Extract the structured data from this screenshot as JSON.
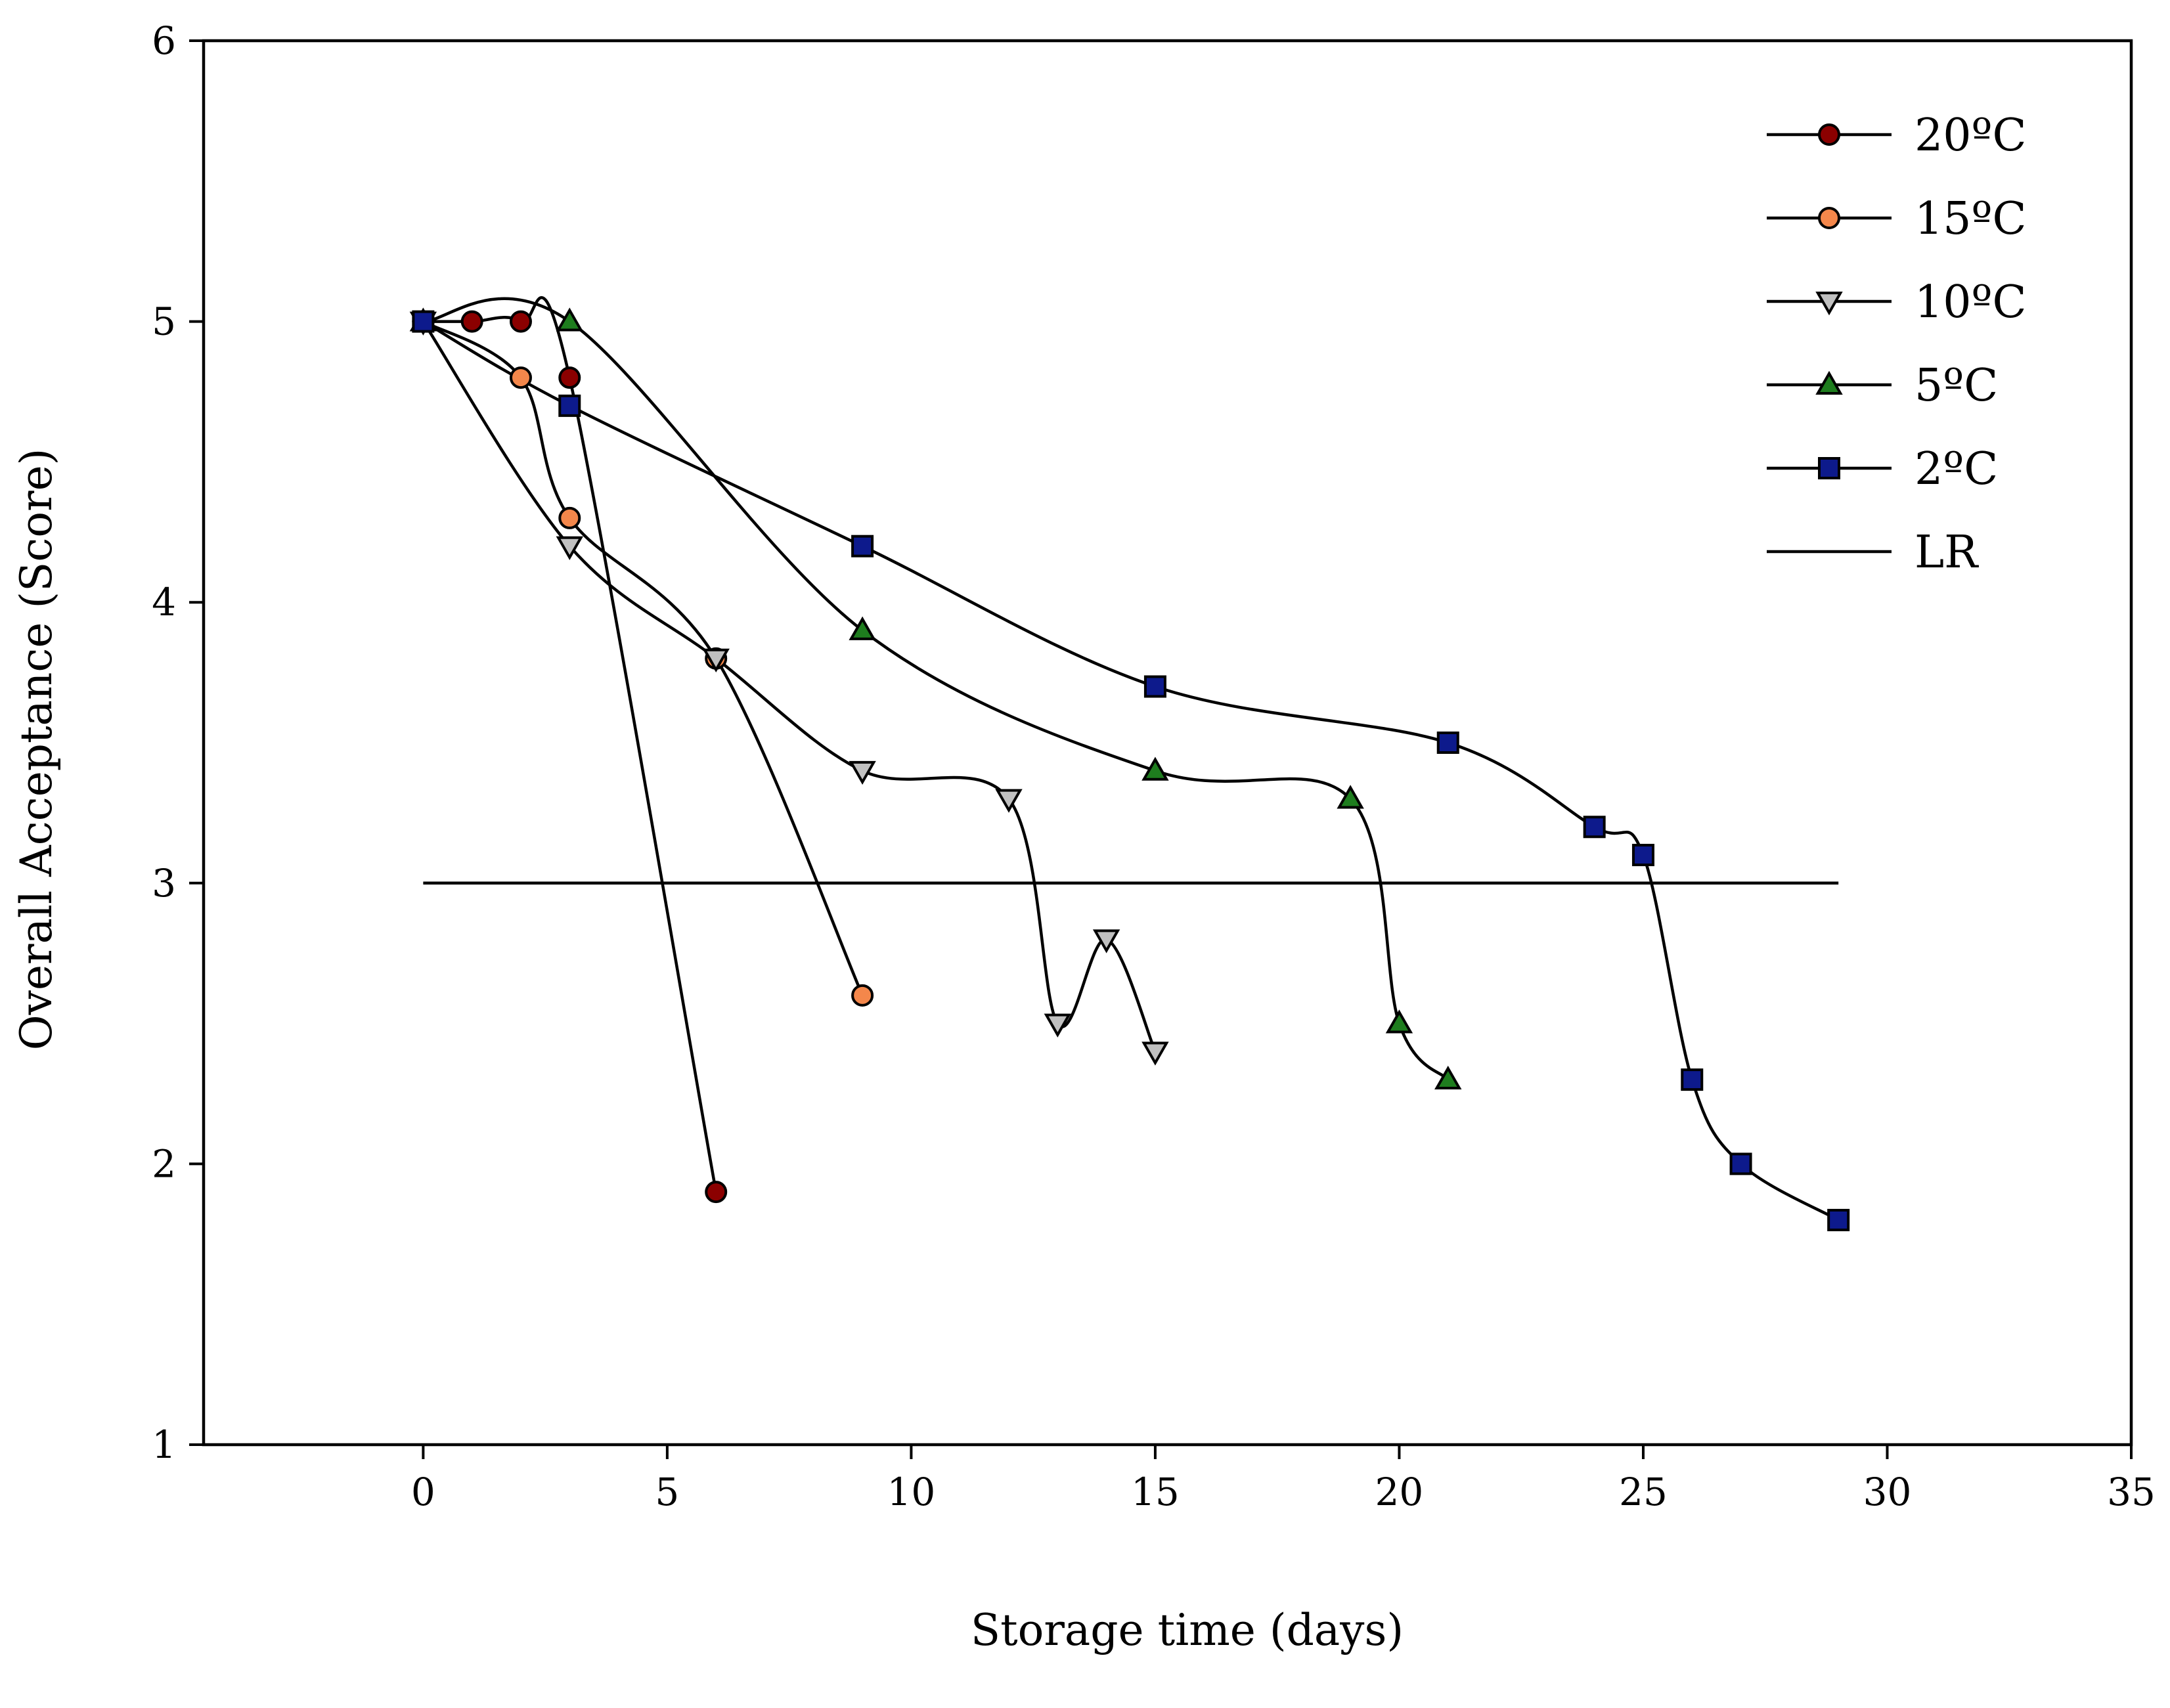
{
  "chart_data": {
    "type": "line",
    "title": "",
    "xlabel": "Storage time (days)",
    "ylabel": "Overall Acceptance (Score)",
    "xlim": [
      -4.5,
      35
    ],
    "ylim": [
      1,
      6
    ],
    "xticks": [
      0,
      5,
      10,
      15,
      20,
      25,
      30,
      35
    ],
    "yticks": [
      1,
      2,
      3,
      4,
      5,
      6
    ],
    "legend_position": "top-right",
    "series": [
      {
        "name": "20ºC",
        "marker": "circle",
        "color": "#8b0000",
        "x": [
          0,
          1,
          2,
          3,
          6
        ],
        "y": [
          5.0,
          5.0,
          5.0,
          4.8,
          1.9
        ]
      },
      {
        "name": "15ºC",
        "marker": "circle",
        "color": "#f4874b",
        "x": [
          0,
          2,
          3,
          6,
          9
        ],
        "y": [
          5.0,
          4.8,
          4.3,
          3.8,
          2.6
        ]
      },
      {
        "name": "10ºC",
        "marker": "triangle-down",
        "color": "#c0c0c0",
        "x": [
          0,
          3,
          6,
          9,
          12,
          13,
          14,
          15
        ],
        "y": [
          5.0,
          4.2,
          3.8,
          3.4,
          3.3,
          2.5,
          2.8,
          2.4
        ]
      },
      {
        "name": "5ºC",
        "marker": "triangle-up",
        "color": "#1e7d1e",
        "x": [
          0,
          3,
          9,
          15,
          19,
          20,
          21
        ],
        "y": [
          5.0,
          5.0,
          3.9,
          3.4,
          3.3,
          2.5,
          2.3
        ]
      },
      {
        "name": "2ºC",
        "marker": "square",
        "color": "#0d1a8c",
        "x": [
          0,
          3,
          9,
          15,
          21,
          24,
          25,
          26,
          27,
          29
        ],
        "y": [
          5.0,
          4.7,
          4.2,
          3.7,
          3.5,
          3.2,
          3.1,
          2.3,
          2.0,
          1.8
        ]
      }
    ],
    "reference_line": {
      "name": "LR",
      "y": 3,
      "x": [
        0,
        29
      ]
    }
  }
}
